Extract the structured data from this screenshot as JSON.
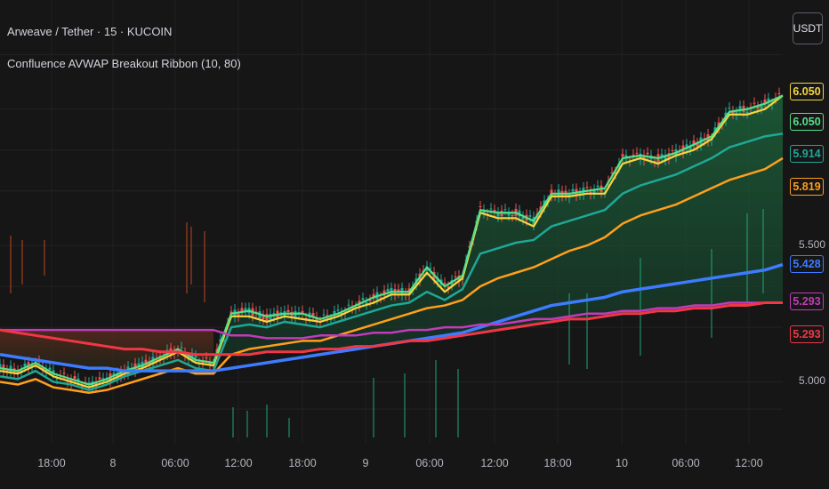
{
  "header": {
    "title": "Arweave / Tether · 15 · KUCOIN",
    "indicator": "Confluence AVWAP Breakout Ribbon (10, 80)",
    "currency": "USDT"
  },
  "price_tags": [
    {
      "label": "6.050",
      "color": "#f5d63d"
    },
    {
      "label": "6.050",
      "color": "#54e08b"
    },
    {
      "label": "5.914",
      "color": "#1fa796"
    },
    {
      "label": "5.819",
      "color": "#ff9f1c"
    },
    {
      "label": "5.428",
      "color": "#3d7bff"
    },
    {
      "label": "5.293",
      "color": "#c23bb9"
    },
    {
      "label": "5.293",
      "color": "#f23645"
    }
  ],
  "chart_data": {
    "type": "line",
    "title": "Arweave / Tether · 15 · KUCOIN",
    "xlabel": "",
    "ylabel": "",
    "x_ticks": [
      "18:00",
      "8",
      "06:00",
      "12:00",
      "18:00",
      "9",
      "06:00",
      "12:00",
      "18:00",
      "10",
      "06:00",
      "12:00"
    ],
    "y_ticks": [
      5.0,
      5.5
    ],
    "ylim": [
      4.77,
      6.4
    ],
    "grid": true,
    "x": [
      0,
      20,
      40,
      60,
      80,
      100,
      120,
      140,
      160,
      180,
      200,
      220,
      240,
      260,
      280,
      300,
      320,
      340,
      360,
      380,
      400,
      420,
      440,
      460,
      480,
      500,
      520,
      540,
      560,
      580,
      600,
      620,
      640,
      660,
      680,
      700,
      720,
      740,
      760,
      780,
      800,
      820,
      840,
      860,
      880
    ],
    "series": [
      {
        "name": "",
        "color": "#f5d63d",
        "values": [
          5.04,
          5.03,
          5.06,
          5.02,
          5.0,
          4.98,
          5.0,
          5.03,
          5.05,
          5.08,
          5.11,
          5.07,
          5.06,
          5.24,
          5.24,
          5.22,
          5.24,
          5.23,
          5.22,
          5.24,
          5.27,
          5.29,
          5.32,
          5.32,
          5.4,
          5.33,
          5.38,
          5.62,
          5.6,
          5.6,
          5.57,
          5.68,
          5.68,
          5.69,
          5.69,
          5.8,
          5.82,
          5.8,
          5.83,
          5.85,
          5.89,
          5.98,
          5.98,
          6.0,
          6.05
        ]
      },
      {
        "name": "",
        "color": "#54e08b",
        "values": [
          5.05,
          5.04,
          5.07,
          5.03,
          5.01,
          4.99,
          5.01,
          5.04,
          5.06,
          5.09,
          5.12,
          5.08,
          5.07,
          5.25,
          5.26,
          5.24,
          5.25,
          5.25,
          5.23,
          5.25,
          5.28,
          5.31,
          5.33,
          5.33,
          5.42,
          5.35,
          5.39,
          5.63,
          5.62,
          5.62,
          5.59,
          5.69,
          5.69,
          5.7,
          5.71,
          5.82,
          5.83,
          5.82,
          5.84,
          5.87,
          5.9,
          5.99,
          6.0,
          6.02,
          6.05
        ]
      },
      {
        "name": "",
        "color": "#1fa796",
        "values": [
          5.02,
          5.01,
          5.04,
          5.0,
          4.99,
          4.97,
          4.99,
          5.02,
          5.04,
          5.06,
          5.08,
          5.05,
          5.04,
          5.2,
          5.21,
          5.2,
          5.22,
          5.21,
          5.2,
          5.22,
          5.24,
          5.26,
          5.28,
          5.29,
          5.33,
          5.3,
          5.34,
          5.47,
          5.49,
          5.51,
          5.52,
          5.57,
          5.59,
          5.61,
          5.63,
          5.69,
          5.72,
          5.74,
          5.76,
          5.79,
          5.82,
          5.86,
          5.88,
          5.9,
          5.91
        ]
      },
      {
        "name": "",
        "color": "#ff9f1c",
        "values": [
          5.0,
          4.99,
          5.01,
          4.98,
          4.97,
          4.96,
          4.97,
          4.99,
          5.01,
          5.03,
          5.05,
          5.03,
          5.03,
          5.1,
          5.12,
          5.13,
          5.14,
          5.15,
          5.15,
          5.17,
          5.19,
          5.21,
          5.23,
          5.25,
          5.27,
          5.28,
          5.3,
          5.35,
          5.38,
          5.4,
          5.42,
          5.45,
          5.48,
          5.5,
          5.53,
          5.58,
          5.61,
          5.63,
          5.65,
          5.68,
          5.71,
          5.74,
          5.76,
          5.78,
          5.82
        ]
      },
      {
        "name": "",
        "color": "#3d7bff",
        "values": [
          5.1,
          5.09,
          5.08,
          5.07,
          5.06,
          5.05,
          5.05,
          5.04,
          5.04,
          5.04,
          5.04,
          5.04,
          5.04,
          5.05,
          5.06,
          5.07,
          5.08,
          5.09,
          5.1,
          5.11,
          5.12,
          5.13,
          5.14,
          5.15,
          5.16,
          5.17,
          5.18,
          5.2,
          5.22,
          5.24,
          5.26,
          5.28,
          5.29,
          5.3,
          5.31,
          5.33,
          5.34,
          5.35,
          5.36,
          5.37,
          5.38,
          5.39,
          5.4,
          5.41,
          5.43
        ]
      },
      {
        "name": "",
        "color": "#c23bb9",
        "values": [
          5.19,
          5.19,
          5.19,
          5.19,
          5.19,
          5.19,
          5.19,
          5.19,
          5.19,
          5.19,
          5.19,
          5.19,
          5.19,
          5.17,
          5.17,
          5.16,
          5.16,
          5.16,
          5.17,
          5.17,
          5.17,
          5.18,
          5.18,
          5.19,
          5.19,
          5.2,
          5.2,
          5.21,
          5.21,
          5.22,
          5.23,
          5.23,
          5.24,
          5.25,
          5.25,
          5.26,
          5.26,
          5.27,
          5.27,
          5.28,
          5.28,
          5.29,
          5.29,
          5.29,
          5.29
        ]
      },
      {
        "name": "",
        "color": "#f23645",
        "values": [
          5.19,
          5.18,
          5.17,
          5.16,
          5.15,
          5.14,
          5.13,
          5.12,
          5.12,
          5.11,
          5.11,
          5.1,
          5.1,
          5.1,
          5.1,
          5.11,
          5.11,
          5.11,
          5.12,
          5.12,
          5.13,
          5.13,
          5.14,
          5.15,
          5.15,
          5.16,
          5.17,
          5.18,
          5.19,
          5.2,
          5.21,
          5.22,
          5.23,
          5.23,
          5.24,
          5.25,
          5.25,
          5.26,
          5.26,
          5.27,
          5.27,
          5.28,
          5.28,
          5.29,
          5.29
        ]
      }
    ]
  }
}
